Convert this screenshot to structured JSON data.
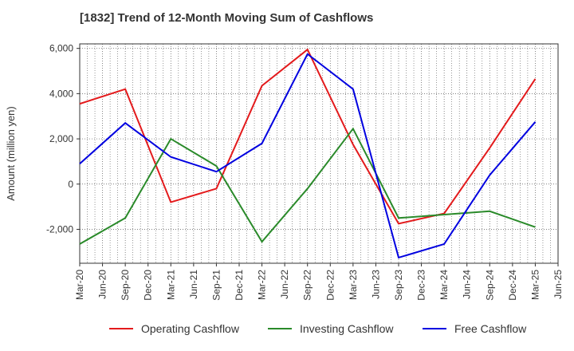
{
  "chart_data": {
    "type": "line",
    "title": "[1832]  Trend of 12-Month Moving Sum of Cashflows",
    "xlabel": "",
    "ylabel": "Amount (million yen)",
    "ylim": [
      -3500,
      6200
    ],
    "yticks": [
      -2000,
      0,
      2000,
      4000,
      6000
    ],
    "ytick_labels": [
      "-2,000",
      "0",
      "2,000",
      "4,000",
      "6,000"
    ],
    "categories": [
      "Mar-20",
      "Jun-20",
      "Sep-20",
      "Dec-20",
      "Mar-21",
      "Jun-21",
      "Sep-21",
      "Dec-21",
      "Mar-22",
      "Jun-22",
      "Sep-22",
      "Dec-22",
      "Mar-23",
      "Jun-23",
      "Sep-23",
      "Dec-23",
      "Mar-24",
      "Jun-24",
      "Sep-24",
      "Dec-24",
      "Mar-25",
      "Jun-25"
    ],
    "grid": true,
    "legend_position": "bottom",
    "series": [
      {
        "name": "Operating Cashflow",
        "color": "#e31a1c",
        "points": [
          [
            "Mar-20",
            3550
          ],
          [
            "Sep-20",
            4200
          ],
          [
            "Mar-21",
            -800
          ],
          [
            "Sep-21",
            -200
          ],
          [
            "Mar-22",
            4350
          ],
          [
            "Sep-22",
            5950
          ],
          [
            "Mar-23",
            1750
          ],
          [
            "Sep-23",
            -1750
          ],
          [
            "Mar-24",
            -1300
          ],
          [
            "Sep-24",
            1600
          ],
          [
            "Mar-25",
            4650
          ]
        ]
      },
      {
        "name": "Investing Cashflow",
        "color": "#2a8a2a",
        "points": [
          [
            "Mar-20",
            -2650
          ],
          [
            "Sep-20",
            -1500
          ],
          [
            "Mar-21",
            2000
          ],
          [
            "Sep-21",
            800
          ],
          [
            "Mar-22",
            -2550
          ],
          [
            "Sep-22",
            -200
          ],
          [
            "Mar-23",
            2450
          ],
          [
            "Sep-23",
            -1500
          ],
          [
            "Mar-24",
            -1350
          ],
          [
            "Sep-24",
            -1200
          ],
          [
            "Mar-25",
            -1900
          ]
        ]
      },
      {
        "name": "Free Cashflow",
        "color": "#0000e0",
        "points": [
          [
            "Mar-20",
            900
          ],
          [
            "Sep-20",
            2700
          ],
          [
            "Mar-21",
            1200
          ],
          [
            "Sep-21",
            550
          ],
          [
            "Mar-22",
            1800
          ],
          [
            "Sep-22",
            5750
          ],
          [
            "Mar-23",
            4200
          ],
          [
            "Sep-23",
            -3250
          ],
          [
            "Mar-24",
            -2650
          ],
          [
            "Sep-24",
            400
          ],
          [
            "Mar-25",
            2750
          ]
        ]
      }
    ]
  }
}
